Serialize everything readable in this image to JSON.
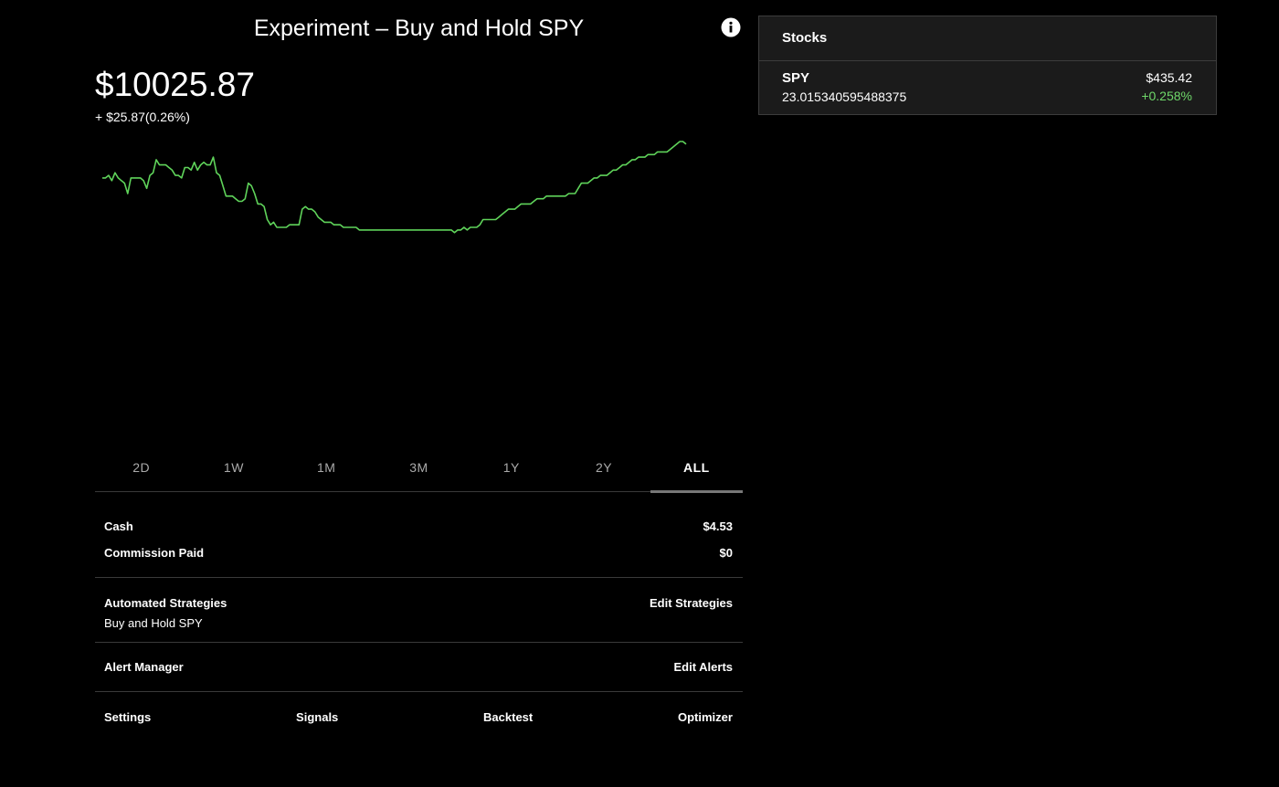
{
  "header": {
    "title": "Experiment – Buy and Hold SPY",
    "info_icon": "info-icon"
  },
  "portfolio": {
    "value": "$10025.87",
    "change": "+ $25.87(0.26%)"
  },
  "colors": {
    "line": "#5fd35a",
    "positive": "#6fd86a",
    "background": "#000000",
    "card": "#1b1b1b"
  },
  "chart_data": {
    "type": "line",
    "title": "",
    "xlabel": "",
    "ylabel": "",
    "grid": false,
    "ylim": [
      0,
      100
    ],
    "series": [
      {
        "values": [
          86,
          86,
          87,
          85,
          88,
          86,
          85,
          84,
          80,
          86,
          86,
          86,
          86,
          85,
          82,
          87,
          88,
          93,
          91,
          91,
          91,
          90,
          89,
          87,
          87,
          86,
          90,
          90,
          89,
          92,
          89,
          91,
          92,
          91,
          91,
          94,
          88,
          87,
          83,
          79,
          79,
          79,
          78,
          77,
          77,
          78,
          84,
          83,
          80,
          76,
          76,
          75,
          70,
          68,
          69,
          67,
          67,
          67,
          67,
          68,
          68,
          68,
          68,
          74,
          75,
          74,
          74,
          73,
          71,
          70,
          69,
          69,
          69,
          68,
          68,
          68,
          67,
          67,
          67,
          67,
          67,
          66,
          66,
          66,
          66,
          66,
          66,
          66,
          66,
          66,
          66,
          66,
          66,
          66,
          66,
          66,
          66,
          66,
          66,
          66,
          66,
          66,
          66,
          66,
          66,
          66,
          66,
          66,
          66,
          66,
          66,
          65,
          66,
          66,
          67,
          66,
          67,
          67,
          67,
          68,
          70,
          70,
          70,
          70,
          70,
          71,
          72,
          73,
          74,
          74,
          74,
          75,
          76,
          76,
          76,
          76,
          77,
          78,
          78,
          78,
          79,
          79,
          79,
          79,
          79,
          79,
          79,
          80,
          80,
          80,
          82,
          84,
          84,
          84,
          85,
          86,
          86,
          87,
          87,
          87,
          88,
          89,
          89,
          90,
          91,
          91,
          92,
          93,
          93,
          94,
          94,
          94,
          95,
          95,
          95,
          96,
          96,
          96,
          96,
          97,
          98,
          99,
          100,
          100,
          99
        ]
      }
    ]
  },
  "ranges": {
    "tabs": [
      "2D",
      "1W",
      "1M",
      "3M",
      "1Y",
      "2Y",
      "ALL"
    ],
    "active": "ALL"
  },
  "account": {
    "cash_label": "Cash",
    "cash_value": "$4.53",
    "commission_label": "Commission Paid",
    "commission_value": "$0"
  },
  "strategies": {
    "label": "Automated Strategies",
    "action": "Edit Strategies",
    "item": "Buy and Hold SPY"
  },
  "alerts": {
    "label": "Alert Manager",
    "action": "Edit Alerts"
  },
  "links": {
    "settings": "Settings",
    "signals": "Signals",
    "backtest": "Backtest",
    "optimizer": "Optimizer"
  },
  "stocks": {
    "header": "Stocks",
    "items": [
      {
        "symbol": "SPY",
        "shares": "23.015340595488375",
        "price": "$435.42",
        "change": "+0.258%"
      }
    ]
  }
}
